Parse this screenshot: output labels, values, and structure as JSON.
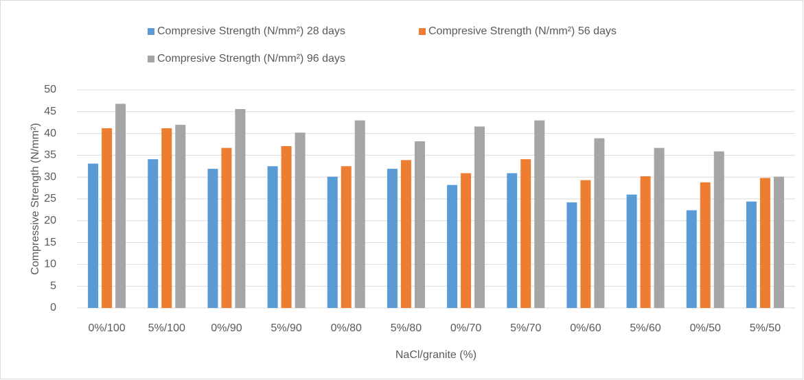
{
  "chart_data": {
    "type": "bar",
    "x_label": "NaCl/granite (%)",
    "y_label": "Compressive Strength (N/mm²)",
    "categories": [
      "0%/100",
      "5%/100",
      "0%/90",
      "5%/90",
      "0%/80",
      "5%/80",
      "0%/70",
      "5%/70",
      "0%/60",
      "5%/60",
      "0%/50",
      "5%/50"
    ],
    "series": [
      {
        "name": "Compresive Strength (N/mm²) 28 days",
        "color": "#5b9bd5",
        "values": [
          33.1,
          34.1,
          31.9,
          32.5,
          30.1,
          31.9,
          28.2,
          30.9,
          24.2,
          26.0,
          22.4,
          24.4
        ]
      },
      {
        "name": "Compresive Strength (N/mm²) 56 days",
        "color": "#ed7d31",
        "values": [
          41.2,
          41.2,
          36.7,
          37.1,
          32.5,
          33.9,
          30.9,
          34.1,
          29.3,
          30.2,
          28.8,
          29.8
        ]
      },
      {
        "name": "Compresive Strength (N/mm²) 96 days",
        "color": "#a5a5a5",
        "values": [
          46.8,
          42.0,
          45.6,
          40.2,
          43.0,
          38.2,
          41.6,
          43.0,
          38.9,
          36.7,
          35.9,
          30.1
        ]
      }
    ],
    "ylim": [
      0,
      50
    ],
    "yticks": [
      0,
      5,
      10,
      15,
      20,
      25,
      30,
      35,
      40,
      45,
      50
    ],
    "grid": true,
    "legend": "top"
  }
}
